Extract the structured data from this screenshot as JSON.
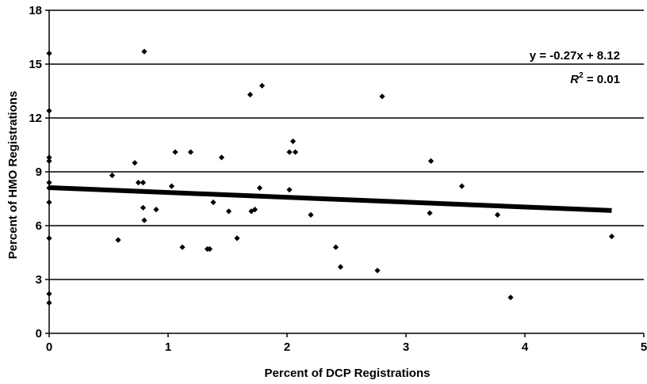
{
  "chart_data": {
    "type": "scatter",
    "title": "",
    "xlabel": "Percent of DCP Registrations",
    "ylabel": "Percent of HMO Registrations",
    "xlim": [
      0,
      5
    ],
    "ylim": [
      0,
      18
    ],
    "x_ticks": [
      "0",
      "1",
      "2",
      "3",
      "4",
      "5"
    ],
    "y_ticks": [
      "0",
      "3",
      "6",
      "9",
      "12",
      "15",
      "18"
    ],
    "grid": "horizontal",
    "trendline": {
      "slope": -0.27,
      "intercept": 8.12,
      "x_range": [
        0,
        4.73
      ]
    },
    "annotations": {
      "equation": "y = -0.27x + 8.12",
      "r2_label": "R",
      "r2_sup": "2",
      "r2_value": " = 0.01"
    },
    "points": [
      [
        0,
        15.6
      ],
      [
        0,
        12.4
      ],
      [
        0,
        9.8
      ],
      [
        0,
        9.6
      ],
      [
        0,
        8.4
      ],
      [
        0,
        8.1
      ],
      [
        0,
        7.3
      ],
      [
        0,
        5.3
      ],
      [
        0,
        2.2
      ],
      [
        0,
        1.7
      ],
      [
        0.53,
        8.8
      ],
      [
        0.58,
        5.2
      ],
      [
        0.72,
        9.5
      ],
      [
        0.75,
        8.4
      ],
      [
        0.79,
        8.4
      ],
      [
        0.79,
        7.0
      ],
      [
        0.8,
        6.3
      ],
      [
        0.8,
        15.7
      ],
      [
        0.9,
        6.9
      ],
      [
        1.03,
        8.2
      ],
      [
        1.06,
        10.1
      ],
      [
        1.12,
        4.8
      ],
      [
        1.19,
        10.1
      ],
      [
        1.33,
        4.7
      ],
      [
        1.35,
        4.7
      ],
      [
        1.38,
        7.3
      ],
      [
        1.45,
        9.8
      ],
      [
        1.51,
        6.8
      ],
      [
        1.58,
        5.3
      ],
      [
        1.69,
        13.3
      ],
      [
        1.7,
        6.8
      ],
      [
        1.73,
        6.9
      ],
      [
        1.77,
        8.1
      ],
      [
        1.79,
        13.8
      ],
      [
        2.02,
        10.1
      ],
      [
        2.02,
        8.0
      ],
      [
        2.05,
        10.7
      ],
      [
        2.07,
        10.1
      ],
      [
        2.2,
        6.6
      ],
      [
        2.41,
        4.8
      ],
      [
        2.45,
        3.7
      ],
      [
        2.76,
        3.5
      ],
      [
        2.8,
        13.2
      ],
      [
        3.2,
        6.7
      ],
      [
        3.21,
        9.6
      ],
      [
        3.47,
        8.2
      ],
      [
        3.77,
        6.6
      ],
      [
        3.88,
        2.0
      ],
      [
        4.73,
        5.4
      ]
    ]
  }
}
